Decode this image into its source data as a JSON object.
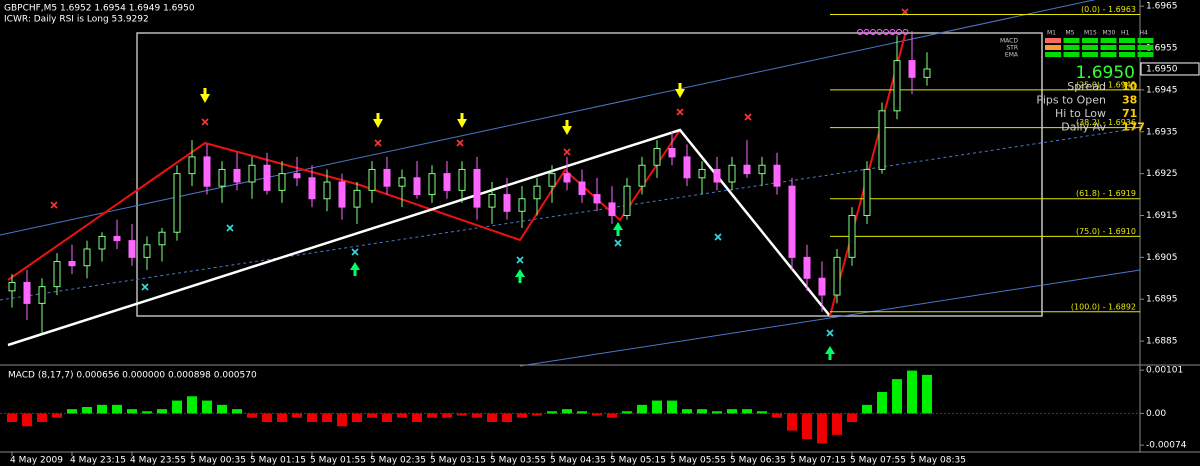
{
  "chart_data": {
    "type": "candlestick",
    "title": "GBPCHF,M5  1.6952 1.6954 1.6949 1.6950",
    "subtitle": "ICWR: Daily RSI is Long 53.9292",
    "up_color": "#80ff80",
    "down_color": "#ff66ff",
    "open": [
      1.6897,
      1.6899,
      1.6894,
      1.6898,
      1.6904,
      1.6903,
      1.6907,
      1.691,
      1.6909,
      1.6905,
      1.6908,
      1.6911,
      1.6925,
      1.6929,
      1.6922,
      1.6926,
      1.6923,
      1.6927,
      1.6921,
      1.6925,
      1.6924,
      1.6919,
      1.6923,
      1.6917,
      1.6921,
      1.6926,
      1.6922,
      1.6924,
      1.692,
      1.6925,
      1.6921,
      1.6926,
      1.6917,
      1.692,
      1.6916,
      1.6919,
      1.6922,
      1.6925,
      1.6923,
      1.692,
      1.6918,
      1.6915,
      1.6922,
      1.6927,
      1.6931,
      1.6929,
      1.6924,
      1.6926,
      1.6923,
      1.6927,
      1.6925,
      1.6927,
      1.6922,
      1.6905,
      1.69,
      1.6896,
      1.6905,
      1.6915,
      1.6926,
      1.694,
      1.6952,
      1.6948
    ],
    "high": [
      1.6901,
      1.6902,
      1.69,
      1.6906,
      1.6908,
      1.6909,
      1.6911,
      1.6914,
      1.6913,
      1.691,
      1.6912,
      1.6927,
      1.6933,
      1.6932,
      1.6928,
      1.693,
      1.6929,
      1.693,
      1.6928,
      1.6929,
      1.6927,
      1.6926,
      1.6925,
      1.6923,
      1.6928,
      1.6929,
      1.6926,
      1.6928,
      1.6927,
      1.6928,
      1.6928,
      1.6929,
      1.6923,
      1.6924,
      1.6922,
      1.6924,
      1.6927,
      1.6929,
      1.6926,
      1.6924,
      1.6922,
      1.6924,
      1.6929,
      1.6933,
      1.6935,
      1.6932,
      1.6928,
      1.6929,
      1.6929,
      1.6933,
      1.6929,
      1.693,
      1.6924,
      1.6908,
      1.6904,
      1.6907,
      1.6917,
      1.6928,
      1.6942,
      1.6958,
      1.6959,
      1.6954
    ],
    "low": [
      1.6893,
      1.689,
      1.6887,
      1.6896,
      1.6901,
      1.69,
      1.6904,
      1.6907,
      1.6903,
      1.6902,
      1.6904,
      1.6909,
      1.6922,
      1.692,
      1.6918,
      1.6921,
      1.6919,
      1.692,
      1.6918,
      1.6922,
      1.6917,
      1.6916,
      1.6914,
      1.6913,
      1.6918,
      1.692,
      1.6917,
      1.6919,
      1.6918,
      1.6919,
      1.6918,
      1.6914,
      1.6913,
      1.6914,
      1.6912,
      1.6915,
      1.6918,
      1.6921,
      1.6918,
      1.6916,
      1.6913,
      1.6914,
      1.692,
      1.6924,
      1.6927,
      1.6922,
      1.692,
      1.6921,
      1.6921,
      1.6924,
      1.6922,
      1.692,
      1.6902,
      1.6897,
      1.6892,
      1.6894,
      1.6903,
      1.6913,
      1.6925,
      1.6938,
      1.6944,
      1.6946
    ],
    "close": [
      1.6899,
      1.6894,
      1.6898,
      1.6904,
      1.6903,
      1.6907,
      1.691,
      1.6909,
      1.6905,
      1.6908,
      1.6911,
      1.6925,
      1.6929,
      1.6922,
      1.6926,
      1.6923,
      1.6927,
      1.6921,
      1.6925,
      1.6924,
      1.6919,
      1.6923,
      1.6917,
      1.6921,
      1.6926,
      1.6922,
      1.6924,
      1.692,
      1.6925,
      1.6921,
      1.6926,
      1.6917,
      1.692,
      1.6916,
      1.6919,
      1.6922,
      1.6925,
      1.6923,
      1.692,
      1.6918,
      1.6915,
      1.6922,
      1.6927,
      1.6931,
      1.6929,
      1.6924,
      1.6926,
      1.6923,
      1.6927,
      1.6925,
      1.6927,
      1.6922,
      1.6905,
      1.69,
      1.6896,
      1.6905,
      1.6915,
      1.6926,
      1.694,
      1.6952,
      1.6948,
      1.695
    ],
    "xlim": [
      -0.8,
      75.2
    ],
    "xticks": [
      {
        "value": 0,
        "label": "4 May 2009"
      },
      {
        "value": 4,
        "label": "4 May 23:15"
      },
      {
        "value": 8,
        "label": "4 May 23:55"
      },
      {
        "value": 12,
        "label": "5 May 00:35"
      },
      {
        "value": 16,
        "label": "5 May 01:15"
      },
      {
        "value": 20,
        "label": "5 May 01:55"
      },
      {
        "value": 24,
        "label": "5 May 02:35"
      },
      {
        "value": 28,
        "label": "5 May 03:15"
      },
      {
        "value": 32,
        "label": "5 May 03:55"
      },
      {
        "value": 36,
        "label": "5 May 04:35"
      },
      {
        "value": 40,
        "label": "5 May 05:15"
      },
      {
        "value": 44,
        "label": "5 May 05:55"
      },
      {
        "value": 48,
        "label": "5 May 06:35"
      },
      {
        "value": 52,
        "label": "5 May 07:15"
      },
      {
        "value": 56,
        "label": "5 May 07:55"
      },
      {
        "value": 60,
        "label": "5 May 08:35"
      }
    ],
    "ylim": [
      1.688,
      1.6966
    ],
    "yticks": [
      1.6885,
      1.6895,
      1.6905,
      1.6915,
      1.6925,
      1.6935,
      1.6945,
      1.6955,
      1.6965
    ],
    "current_price": {
      "value": 1.695,
      "label": "1.6950"
    },
    "fib_levels": [
      {
        "value": 1.6963,
        "label": "(0.0) - 1.6963"
      },
      {
        "value": 1.6945,
        "label": "(25.0) - 1.6945"
      },
      {
        "value": 1.6936,
        "label": "(38.2) - 1.6936"
      },
      {
        "value": 1.6919,
        "label": "(61.8) - 1.6919"
      },
      {
        "value": 1.691,
        "label": "(75.0) - 1.6910"
      },
      {
        "value": 1.6892,
        "label": "(100.0) - 1.6892"
      }
    ],
    "stats": [
      {
        "label": "Spread",
        "value": 10
      },
      {
        "label": "Pips to Open",
        "value": 38
      },
      {
        "label": "Hi to Low",
        "value": 71
      },
      {
        "label": "Daily Av",
        "value": 177
      }
    ],
    "timeframes": [
      "M1",
      "M5",
      "M15",
      "M30",
      "H1",
      "H4"
    ],
    "indicators": [
      "MACD",
      "STR",
      "EMA"
    ],
    "macd": {
      "title": "MACD (8,17,7) 0.000656 0.000000 0.000898 0.000570",
      "up_color": "#00ee00",
      "down_color": "#ee0000",
      "values": [
        -0.0002,
        -0.0003,
        -0.0002,
        -0.0001,
        0.0001,
        0.00015,
        0.0002,
        0.0002,
        0.0001,
        5e-05,
        0.0001,
        0.0003,
        0.0004,
        0.0003,
        0.0002,
        0.0001,
        -0.0001,
        -0.0002,
        -0.0002,
        -0.0001,
        -0.0002,
        -0.0002,
        -0.0003,
        -0.0002,
        -0.0001,
        -0.0002,
        -0.0001,
        -0.0002,
        -0.0001,
        -0.0001,
        -5e-05,
        -0.0001,
        -0.0002,
        -0.0002,
        -0.0001,
        -5e-05,
        5e-05,
        0.0001,
        5e-05,
        -5e-05,
        -0.0001,
        5e-05,
        0.0002,
        0.0003,
        0.0003,
        0.0001,
        0.0001,
        5e-05,
        0.0001,
        0.0001,
        5e-05,
        -0.0001,
        -0.0004,
        -0.0006,
        -0.0007,
        -0.0005,
        -0.0002,
        0.0002,
        0.0005,
        0.0008,
        0.001,
        0.0009
      ],
      "ylim": [
        -0.0009,
        0.00106
      ],
      "yticks": [
        0.00101,
        {
          "value": 0,
          "label": "0.00"
        },
        -0.00074
      ]
    }
  }
}
